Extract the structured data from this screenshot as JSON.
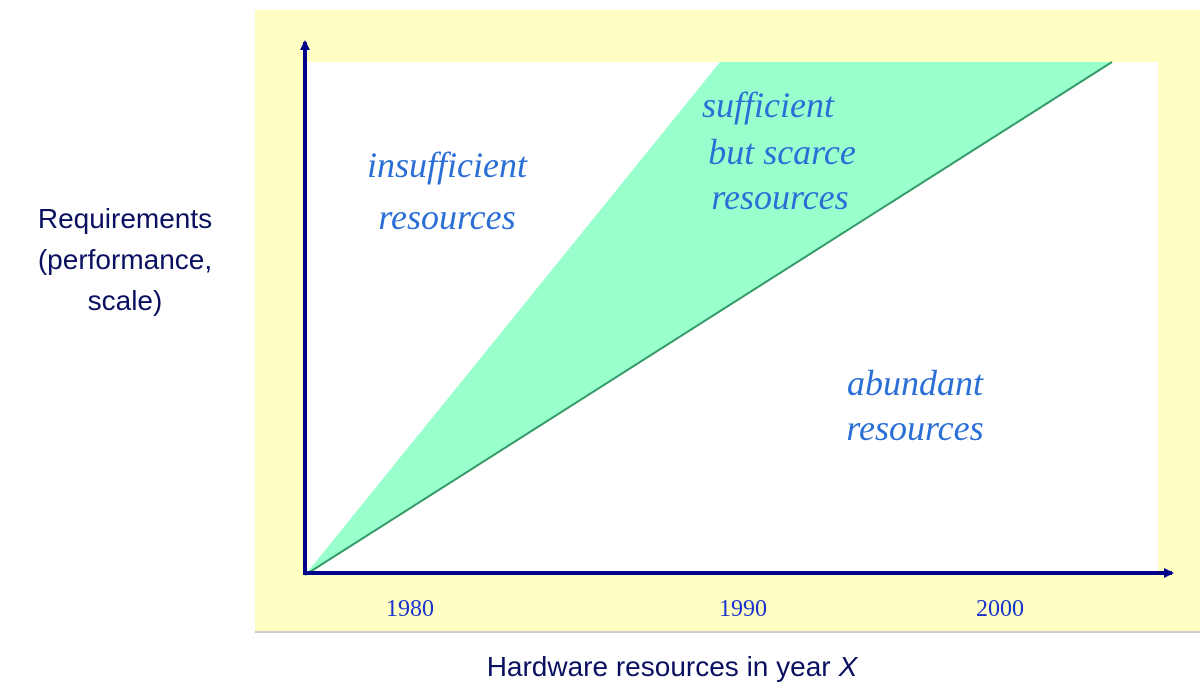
{
  "y_axis_label": [
    "Requirements",
    "(performance,",
    "scale)"
  ],
  "x_axis": {
    "label": "Hardware resources in year",
    "label_variable": "X",
    "ticks": [
      "1980",
      "1990",
      "2000"
    ]
  },
  "regions": {
    "insufficient": [
      "insufficient",
      "resources"
    ],
    "scarce": [
      "sufficient",
      "but scarce",
      "resources"
    ],
    "abundant": [
      "abundant",
      "resources"
    ]
  }
}
